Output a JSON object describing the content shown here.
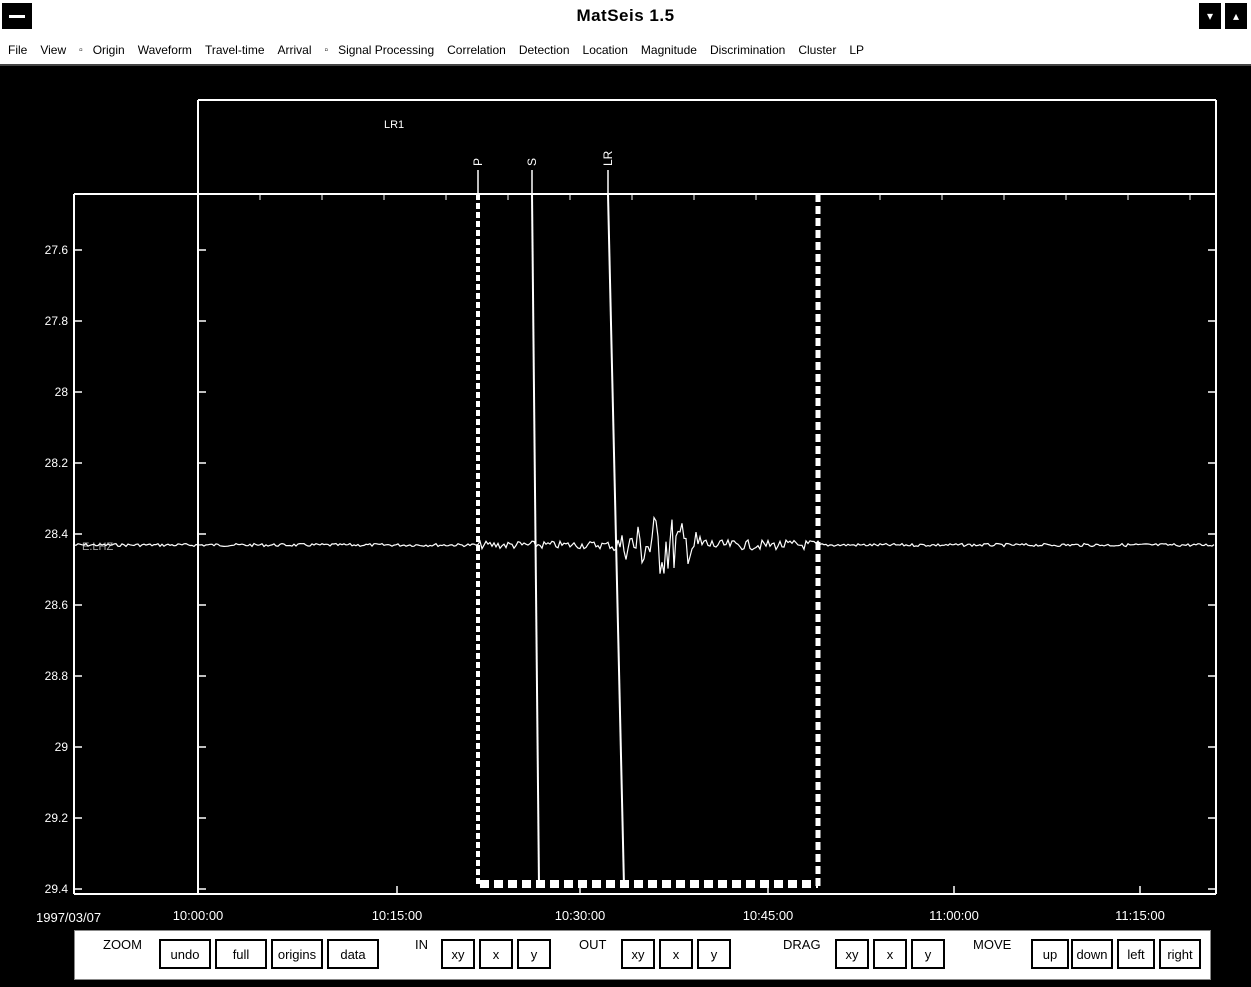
{
  "window": {
    "title": "MatSeis 1.5"
  },
  "menu": [
    {
      "label": "File"
    },
    {
      "label": "View"
    },
    {
      "label": "▫",
      "sep": true
    },
    {
      "label": "Origin"
    },
    {
      "label": "Waveform"
    },
    {
      "label": "Travel-time"
    },
    {
      "label": "Arrival"
    },
    {
      "label": "▫",
      "sep": true
    },
    {
      "label": "Signal Processing"
    },
    {
      "label": "Correlation"
    },
    {
      "label": "Detection"
    },
    {
      "label": "Location"
    },
    {
      "label": "Magnitude"
    },
    {
      "label": "Discrimination"
    },
    {
      "label": "Cluster"
    },
    {
      "label": "LP"
    }
  ],
  "plot": {
    "y_ticks": [
      "27.6",
      "27.8",
      "28",
      "28.2",
      "28.4",
      "28.6",
      "28.8",
      "29",
      "29.2",
      "29.4"
    ],
    "x_ticks": [
      "10:00:00",
      "10:15:00",
      "10:30:00",
      "10:45:00",
      "11:00:00",
      "11:15:00"
    ],
    "date_label": "1997/03/07",
    "upper_label": "LR1",
    "station_label": "E.LHZ",
    "phases": [
      "P",
      "S",
      "LR"
    ]
  },
  "toolbar": {
    "zoom_label": "ZOOM",
    "zoom_buttons": [
      "undo",
      "full",
      "origins",
      "data"
    ],
    "in_label": "IN",
    "in_buttons": [
      "xy",
      "x",
      "y"
    ],
    "out_label": "OUT",
    "out_buttons": [
      "xy",
      "x",
      "y"
    ],
    "drag_label": "DRAG",
    "drag_buttons": [
      "xy",
      "x",
      "y"
    ],
    "move_label": "MOVE",
    "move_buttons": [
      "up",
      "down",
      "left",
      "right"
    ]
  }
}
